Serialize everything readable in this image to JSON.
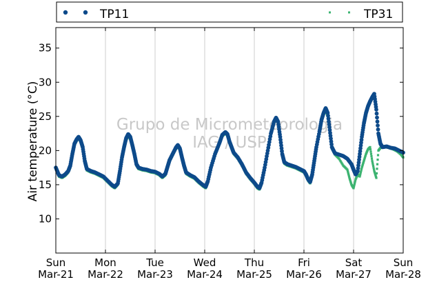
{
  "chart_data": {
    "type": "scatter",
    "ylabel": "Air temperature (°C)",
    "xlabel": "",
    "ylim": [
      5,
      38
    ],
    "yticks": [
      10,
      15,
      20,
      25,
      30,
      35
    ],
    "xticks": [
      {
        "day": "Sun",
        "date": "Mar-21"
      },
      {
        "day": "Mon",
        "date": "Mar-22"
      },
      {
        "day": "Tue",
        "date": "Mar-23"
      },
      {
        "day": "Wed",
        "date": "Mar-24"
      },
      {
        "day": "Thu",
        "date": "Mar-25"
      },
      {
        "day": "Fri",
        "date": "Mar-26"
      },
      {
        "day": "Sat",
        "date": "Mar-27"
      },
      {
        "day": "Sun",
        "date": "Mar-28"
      }
    ],
    "grid": "vertical",
    "legend_position": "top",
    "watermark": [
      "Grupo de Micrometeorologia",
      "IAG / USP"
    ],
    "series": [
      {
        "name": "TP11",
        "color": "#0d4a8a",
        "marker": "circle",
        "points": [
          [
            "Mar-21 00:00",
            17.5
          ],
          [
            "Mar-21 01:30",
            16.4
          ],
          [
            "Mar-21 03:00",
            16.2
          ],
          [
            "Mar-21 04:30",
            16.5
          ],
          [
            "Mar-21 06:00",
            17.0
          ],
          [
            "Mar-21 07:00",
            17.8
          ],
          [
            "Mar-21 08:00",
            19.5
          ],
          [
            "Mar-21 09:00",
            21.0
          ],
          [
            "Mar-21 10:00",
            21.6
          ],
          [
            "Mar-21 11:00",
            22.0
          ],
          [
            "Mar-21 12:00",
            21.5
          ],
          [
            "Mar-21 13:00",
            20.5
          ],
          [
            "Mar-21 14:00",
            18.5
          ],
          [
            "Mar-21 15:00",
            17.3
          ],
          [
            "Mar-21 17:00",
            17.0
          ],
          [
            "Mar-21 19:00",
            16.8
          ],
          [
            "Mar-21 21:00",
            16.5
          ],
          [
            "Mar-21 23:00",
            16.2
          ],
          [
            "Mar-22 01:00",
            15.6
          ],
          [
            "Mar-22 03:00",
            15.0
          ],
          [
            "Mar-22 04:30",
            14.7
          ],
          [
            "Mar-22 06:00",
            15.2
          ],
          [
            "Mar-22 07:00",
            17.0
          ],
          [
            "Mar-22 08:00",
            19.0
          ],
          [
            "Mar-22 09:00",
            20.5
          ],
          [
            "Mar-22 10:00",
            21.8
          ],
          [
            "Mar-22 11:00",
            22.4
          ],
          [
            "Mar-22 12:00",
            22.0
          ],
          [
            "Mar-22 13:00",
            20.8
          ],
          [
            "Mar-22 14:00",
            19.5
          ],
          [
            "Mar-22 15:00",
            18.0
          ],
          [
            "Mar-22 16:00",
            17.5
          ],
          [
            "Mar-22 18:00",
            17.3
          ],
          [
            "Mar-22 20:00",
            17.2
          ],
          [
            "Mar-22 22:00",
            17.0
          ],
          [
            "Mar-23 00:00",
            16.9
          ],
          [
            "Mar-23 02:00",
            16.6
          ],
          [
            "Mar-23 03:30",
            16.2
          ],
          [
            "Mar-23 05:00",
            16.6
          ],
          [
            "Mar-23 06:00",
            17.6
          ],
          [
            "Mar-23 07:00",
            18.6
          ],
          [
            "Mar-23 08:30",
            19.5
          ],
          [
            "Mar-23 10:00",
            20.4
          ],
          [
            "Mar-23 11:00",
            20.8
          ],
          [
            "Mar-23 12:00",
            20.3
          ],
          [
            "Mar-23 13:00",
            19.0
          ],
          [
            "Mar-23 14:00",
            17.8
          ],
          [
            "Mar-23 15:00",
            16.8
          ],
          [
            "Mar-23 17:00",
            16.4
          ],
          [
            "Mar-23 19:00",
            16.1
          ],
          [
            "Mar-23 21:00",
            15.5
          ],
          [
            "Mar-23 23:00",
            15.0
          ],
          [
            "Mar-24 00:30",
            14.7
          ],
          [
            "Mar-24 01:30",
            15.5
          ],
          [
            "Mar-24 03:00",
            17.5
          ],
          [
            "Mar-24 05:00",
            19.5
          ],
          [
            "Mar-24 07:00",
            21.0
          ],
          [
            "Mar-24 08:30",
            22.3
          ],
          [
            "Mar-24 10:00",
            22.7
          ],
          [
            "Mar-24 11:00",
            22.4
          ],
          [
            "Mar-24 12:00",
            21.3
          ],
          [
            "Mar-24 13:00",
            20.5
          ],
          [
            "Mar-24 14:00",
            19.7
          ],
          [
            "Mar-24 16:00",
            19.0
          ],
          [
            "Mar-24 18:00",
            18.0
          ],
          [
            "Mar-24 20:00",
            16.8
          ],
          [
            "Mar-24 22:00",
            16.0
          ],
          [
            "Mar-25 00:00",
            15.3
          ],
          [
            "Mar-25 01:30",
            14.7
          ],
          [
            "Mar-25 02:30",
            14.5
          ],
          [
            "Mar-25 03:30",
            15.3
          ],
          [
            "Mar-25 05:00",
            17.5
          ],
          [
            "Mar-25 06:30",
            20.0
          ],
          [
            "Mar-25 08:00",
            22.5
          ],
          [
            "Mar-25 09:30",
            24.2
          ],
          [
            "Mar-25 10:30",
            24.8
          ],
          [
            "Mar-25 11:30",
            24.2
          ],
          [
            "Mar-25 12:30",
            22.0
          ],
          [
            "Mar-25 13:30",
            19.5
          ],
          [
            "Mar-25 14:30",
            18.3
          ],
          [
            "Mar-25 16:00",
            18.0
          ],
          [
            "Mar-25 18:00",
            17.8
          ],
          [
            "Mar-25 20:00",
            17.6
          ],
          [
            "Mar-25 22:00",
            17.3
          ],
          [
            "Mar-26 00:00",
            17.0
          ],
          [
            "Mar-26 01:00",
            16.5
          ],
          [
            "Mar-26 02:00",
            15.8
          ],
          [
            "Mar-26 03:00",
            15.4
          ],
          [
            "Mar-26 04:00",
            16.5
          ],
          [
            "Mar-26 05:00",
            18.5
          ],
          [
            "Mar-26 06:00",
            20.5
          ],
          [
            "Mar-26 07:30",
            22.8
          ],
          [
            "Mar-26 08:30",
            24.5
          ],
          [
            "Mar-26 09:30",
            25.5
          ],
          [
            "Mar-26 10:30",
            26.2
          ],
          [
            "Mar-26 11:30",
            25.5
          ],
          [
            "Mar-26 12:30",
            23.0
          ],
          [
            "Mar-26 13:30",
            20.5
          ],
          [
            "Mar-26 15:00",
            19.6
          ],
          [
            "Mar-26 17:00",
            19.4
          ],
          [
            "Mar-26 19:00",
            19.2
          ],
          [
            "Mar-26 21:00",
            18.8
          ],
          [
            "Mar-26 23:00",
            18.0
          ],
          [
            "Mar-27 00:00",
            17.2
          ],
          [
            "Mar-27 01:00",
            16.5
          ],
          [
            "Mar-27 02:00",
            17.0
          ],
          [
            "Mar-27 03:00",
            19.5
          ],
          [
            "Mar-27 04:00",
            22.0
          ],
          [
            "Mar-27 05:00",
            24.0
          ],
          [
            "Mar-27 06:00",
            25.5
          ],
          [
            "Mar-27 07:00",
            26.5
          ],
          [
            "Mar-27 08:00",
            27.2
          ],
          [
            "Mar-27 09:00",
            27.8
          ],
          [
            "Mar-27 10:00",
            28.3
          ],
          [
            "Mar-27 11:00",
            26.0
          ],
          [
            "Mar-27 12:00",
            22.5
          ],
          [
            "Mar-27 13:00",
            21.0
          ],
          [
            "Mar-27 14:00",
            20.5
          ],
          [
            "Mar-27 16:00",
            20.6
          ],
          [
            "Mar-27 18:00",
            20.4
          ],
          [
            "Mar-27 20:00",
            20.3
          ],
          [
            "Mar-27 22:00",
            20.0
          ],
          [
            "Mar-28 00:00",
            19.7
          ]
        ]
      },
      {
        "name": "TP31",
        "color": "#3cb371",
        "marker": "square",
        "points": [
          [
            "Mar-21 00:00",
            17.3
          ],
          [
            "Mar-21 01:30",
            16.2
          ],
          [
            "Mar-21 03:00",
            16.0
          ],
          [
            "Mar-21 04:30",
            16.3
          ],
          [
            "Mar-21 06:00",
            16.8
          ],
          [
            "Mar-21 07:00",
            17.5
          ],
          [
            "Mar-21 08:00",
            19.2
          ],
          [
            "Mar-21 09:00",
            20.8
          ],
          [
            "Mar-21 10:00",
            21.4
          ],
          [
            "Mar-21 11:00",
            21.8
          ],
          [
            "Mar-21 12:00",
            21.3
          ],
          [
            "Mar-21 13:00",
            20.2
          ],
          [
            "Mar-21 14:00",
            18.2
          ],
          [
            "Mar-21 15:00",
            17.1
          ],
          [
            "Mar-21 17:00",
            16.8
          ],
          [
            "Mar-21 19:00",
            16.6
          ],
          [
            "Mar-21 21:00",
            16.3
          ],
          [
            "Mar-21 23:00",
            16.0
          ],
          [
            "Mar-22 01:00",
            15.4
          ],
          [
            "Mar-22 03:00",
            14.8
          ],
          [
            "Mar-22 04:30",
            14.5
          ],
          [
            "Mar-22 06:00",
            15.0
          ],
          [
            "Mar-22 07:00",
            16.8
          ],
          [
            "Mar-22 08:00",
            18.7
          ],
          [
            "Mar-22 09:00",
            20.2
          ],
          [
            "Mar-22 10:00",
            21.5
          ],
          [
            "Mar-22 11:00",
            22.1
          ],
          [
            "Mar-22 12:00",
            21.7
          ],
          [
            "Mar-22 13:00",
            20.5
          ],
          [
            "Mar-22 14:00",
            19.2
          ],
          [
            "Mar-22 15:00",
            17.8
          ],
          [
            "Mar-22 16:00",
            17.3
          ],
          [
            "Mar-22 18:00",
            17.1
          ],
          [
            "Mar-22 20:00",
            17.0
          ],
          [
            "Mar-22 22:00",
            16.8
          ],
          [
            "Mar-23 00:00",
            16.7
          ],
          [
            "Mar-23 02:00",
            16.4
          ],
          [
            "Mar-23 03:30",
            16.0
          ],
          [
            "Mar-23 05:00",
            16.4
          ],
          [
            "Mar-23 06:00",
            17.4
          ],
          [
            "Mar-23 07:00",
            18.4
          ],
          [
            "Mar-23 08:30",
            19.3
          ],
          [
            "Mar-23 10:00",
            20.2
          ],
          [
            "Mar-23 11:00",
            20.6
          ],
          [
            "Mar-23 12:00",
            20.1
          ],
          [
            "Mar-23 13:00",
            18.8
          ],
          [
            "Mar-23 14:00",
            17.6
          ],
          [
            "Mar-23 15:00",
            16.6
          ],
          [
            "Mar-23 17:00",
            16.2
          ],
          [
            "Mar-23 19:00",
            15.9
          ],
          [
            "Mar-23 21:00",
            15.3
          ],
          [
            "Mar-23 23:00",
            14.8
          ],
          [
            "Mar-24 00:30",
            14.5
          ],
          [
            "Mar-24 01:30",
            15.3
          ],
          [
            "Mar-24 03:00",
            17.3
          ],
          [
            "Mar-24 05:00",
            19.3
          ],
          [
            "Mar-24 07:00",
            20.8
          ],
          [
            "Mar-24 08:30",
            22.1
          ],
          [
            "Mar-24 10:00",
            22.5
          ],
          [
            "Mar-24 11:00",
            22.2
          ],
          [
            "Mar-24 12:00",
            21.1
          ],
          [
            "Mar-24 13:00",
            20.3
          ],
          [
            "Mar-24 14:00",
            19.5
          ],
          [
            "Mar-24 16:00",
            18.8
          ],
          [
            "Mar-24 18:00",
            17.8
          ],
          [
            "Mar-24 20:00",
            16.6
          ],
          [
            "Mar-24 22:00",
            15.8
          ],
          [
            "Mar-25 00:00",
            15.1
          ],
          [
            "Mar-25 01:30",
            14.5
          ],
          [
            "Mar-25 02:30",
            14.3
          ],
          [
            "Mar-25 03:30",
            15.1
          ],
          [
            "Mar-25 05:00",
            17.3
          ],
          [
            "Mar-25 06:30",
            19.8
          ],
          [
            "Mar-25 08:00",
            22.3
          ],
          [
            "Mar-25 09:30",
            24.0
          ],
          [
            "Mar-25 10:30",
            24.6
          ],
          [
            "Mar-25 11:30",
            24.0
          ],
          [
            "Mar-25 12:30",
            21.8
          ],
          [
            "Mar-25 13:30",
            19.3
          ],
          [
            "Mar-25 14:30",
            18.1
          ],
          [
            "Mar-25 16:00",
            17.8
          ],
          [
            "Mar-25 18:00",
            17.6
          ],
          [
            "Mar-25 20:00",
            17.4
          ],
          [
            "Mar-25 22:00",
            17.1
          ],
          [
            "Mar-26 00:00",
            16.8
          ],
          [
            "Mar-26 01:00",
            16.3
          ],
          [
            "Mar-26 02:00",
            15.6
          ],
          [
            "Mar-26 03:00",
            15.2
          ],
          [
            "Mar-26 04:00",
            16.3
          ],
          [
            "Mar-26 05:00",
            18.3
          ],
          [
            "Mar-26 06:00",
            20.3
          ],
          [
            "Mar-26 07:30",
            22.6
          ],
          [
            "Mar-26 08:30",
            24.3
          ],
          [
            "Mar-26 09:30",
            25.3
          ],
          [
            "Mar-26 10:30",
            25.8
          ],
          [
            "Mar-26 11:30",
            25.0
          ],
          [
            "Mar-26 12:30",
            22.6
          ],
          [
            "Mar-26 13:30",
            20.3
          ],
          [
            "Mar-26 15:00",
            19.4
          ],
          [
            "Mar-26 17:00",
            18.8
          ],
          [
            "Mar-26 19:00",
            17.8
          ],
          [
            "Mar-26 21:00",
            17.2
          ],
          [
            "Mar-26 22:00",
            16.0
          ],
          [
            "Mar-26 23:00",
            15.0
          ],
          [
            "Mar-27 00:00",
            14.5
          ],
          [
            "Mar-27 01:00",
            15.8
          ],
          [
            "Mar-27 02:00",
            16.5
          ],
          [
            "Mar-27 03:00",
            16.2
          ],
          [
            "Mar-27 04:00",
            17.5
          ],
          [
            "Mar-27 05:00",
            18.5
          ],
          [
            "Mar-27 06:00",
            19.5
          ],
          [
            "Mar-27 07:00",
            20.2
          ],
          [
            "Mar-27 08:00",
            20.5
          ],
          [
            "Mar-27 09:00",
            18.5
          ],
          [
            "Mar-27 10:00",
            17.0
          ],
          [
            "Mar-27 11:00",
            16.0
          ],
          [
            "Mar-27 12:00",
            20.0
          ],
          [
            "Mar-27 13:00",
            20.4
          ],
          [
            "Mar-27 15:00",
            20.5
          ],
          [
            "Mar-27 17:00",
            20.4
          ],
          [
            "Mar-27 19:00",
            20.2
          ],
          [
            "Mar-27 21:00",
            19.9
          ],
          [
            "Mar-27 23:00",
            19.4
          ],
          [
            "Mar-28 00:00",
            19.0
          ]
        ]
      }
    ]
  }
}
